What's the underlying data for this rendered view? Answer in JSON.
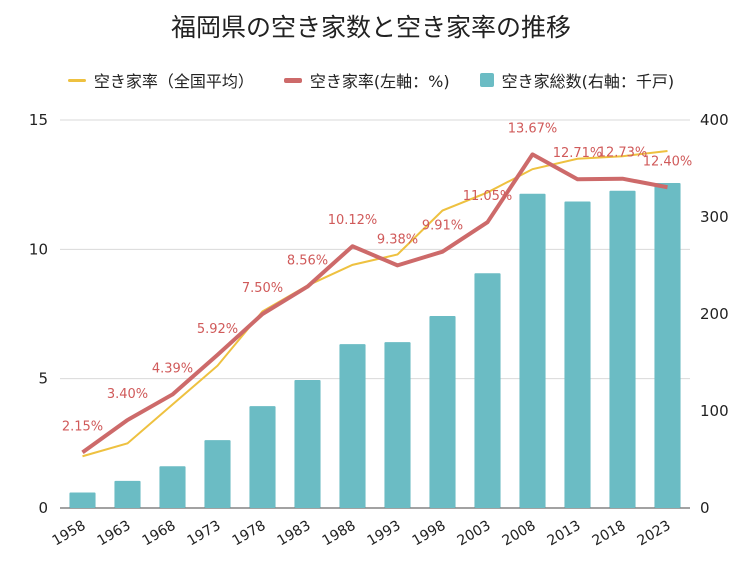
{
  "chart_data": {
    "type": "bar",
    "title": "福岡県の空き家数と空き家率の推移",
    "categories": [
      "1958",
      "1963",
      "1968",
      "1973",
      "1978",
      "1983",
      "1988",
      "1993",
      "1998",
      "2003",
      "2008",
      "2013",
      "2018",
      "2023"
    ],
    "series": [
      {
        "name": "空き家総数(右軸：千戸)",
        "type": "bar",
        "axis": "right",
        "color": "#6bbcc4",
        "values": [
          16,
          28,
          43,
          70,
          105,
          132,
          169,
          171,
          198,
          242,
          324,
          316,
          327,
          335
        ]
      },
      {
        "name": "空き家率(左軸：%)",
        "type": "line",
        "axis": "left",
        "color": "#cd6a6a",
        "values": [
          2.15,
          3.4,
          4.39,
          5.92,
          7.5,
          8.56,
          10.12,
          9.38,
          9.91,
          11.05,
          13.67,
          12.71,
          12.73,
          12.4
        ],
        "labels": [
          "2.15%",
          "3.40%",
          "4.39%",
          "5.92%",
          "7.50%",
          "8.56%",
          "10.12%",
          "9.38%",
          "9.91%",
          "11.05%",
          "13.67%",
          "12.71%",
          "12.73%",
          "12.40%"
        ]
      },
      {
        "name": "空き家率（全国平均）",
        "type": "line",
        "axis": "left",
        "color": "#eec140",
        "values": [
          2.0,
          2.5,
          4.0,
          5.5,
          7.6,
          8.6,
          9.4,
          9.8,
          11.5,
          12.2,
          13.1,
          13.5,
          13.6,
          13.8
        ]
      }
    ],
    "ylim_left": [
      0,
      15
    ],
    "yticks_left": [
      "0",
      "5",
      "10",
      "15"
    ],
    "ylim_right": [
      0,
      400
    ],
    "yticks_right": [
      "0",
      "100",
      "200",
      "300",
      "400"
    ],
    "grid": true,
    "legend_position": "top"
  }
}
